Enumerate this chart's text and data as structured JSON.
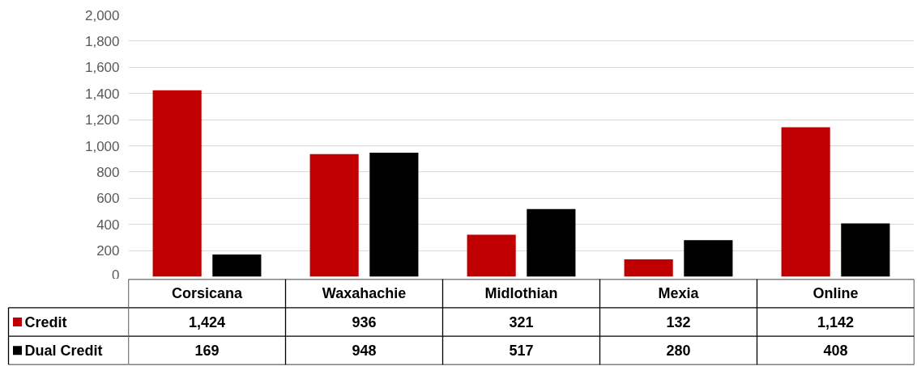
{
  "chart_data": {
    "type": "bar",
    "categories": [
      "Corsicana",
      "Waxahachie",
      "Midlothian",
      "Mexia",
      "Online"
    ],
    "series": [
      {
        "name": "Credit",
        "color": "#c00000",
        "values": [
          1424,
          936,
          321,
          132,
          1142
        ],
        "value_labels": [
          "1,424",
          "936",
          "321",
          "132",
          "1,142"
        ]
      },
      {
        "name": "Dual Credit",
        "color": "#000000",
        "values": [
          169,
          948,
          517,
          280,
          408
        ],
        "value_labels": [
          "169",
          "948",
          "517",
          "280",
          "408"
        ]
      }
    ],
    "ylim": [
      0,
      2000
    ],
    "yticks": [
      {
        "value": 0,
        "label": "0"
      },
      {
        "value": 200,
        "label": "200"
      },
      {
        "value": 400,
        "label": "400"
      },
      {
        "value": 600,
        "label": "600"
      },
      {
        "value": 800,
        "label": "800"
      },
      {
        "value": 1000,
        "label": "1,000"
      },
      {
        "value": 1200,
        "label": "1,200"
      },
      {
        "value": 1400,
        "label": "1,400"
      },
      {
        "value": 1600,
        "label": "1,600"
      },
      {
        "value": 1800,
        "label": "1,800"
      },
      {
        "value": 2000,
        "label": "2,000"
      }
    ],
    "grid": "y",
    "legend": "bottom"
  }
}
